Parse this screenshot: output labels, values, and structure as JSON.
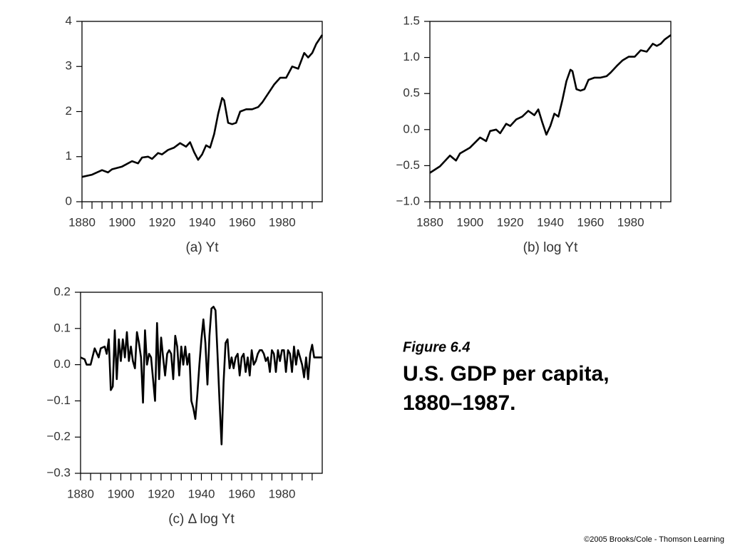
{
  "chart_data": [
    {
      "type": "line",
      "xlabel": "(a) Yt",
      "color": "#000000",
      "x": [
        1880,
        1885,
        1890,
        1893,
        1895,
        1900,
        1905,
        1908,
        1910,
        1913,
        1915,
        1918,
        1920,
        1923,
        1926,
        1929,
        1932,
        1934,
        1936,
        1938,
        1940,
        1942,
        1944,
        1946,
        1948,
        1950,
        1951,
        1953,
        1955,
        1957,
        1959,
        1962,
        1965,
        1968,
        1970,
        1973,
        1976,
        1979,
        1982,
        1985,
        1988,
        1991,
        1993,
        1995,
        1997,
        2000
      ],
      "values": [
        0.55,
        0.6,
        0.7,
        0.65,
        0.72,
        0.78,
        0.9,
        0.85,
        0.98,
        1.0,
        0.95,
        1.08,
        1.05,
        1.15,
        1.2,
        1.3,
        1.22,
        1.32,
        1.1,
        0.93,
        1.05,
        1.25,
        1.2,
        1.5,
        1.95,
        2.3,
        2.25,
        1.75,
        1.72,
        1.75,
        2.0,
        2.05,
        2.05,
        2.1,
        2.2,
        2.4,
        2.6,
        2.75,
        2.75,
        3.0,
        2.95,
        3.3,
        3.2,
        3.3,
        3.5,
        3.7
      ],
      "xlim": [
        1880,
        2000
      ],
      "xticks": [
        1880,
        1900,
        1920,
        1940,
        1960,
        1980
      ],
      "xminorticks": [
        1885,
        1890,
        1895,
        1905,
        1910,
        1915,
        1925,
        1930,
        1935,
        1945,
        1950,
        1955,
        1965,
        1970,
        1975,
        1985,
        1990,
        1995
      ],
      "ylim": [
        0,
        4
      ],
      "yticks": [
        0,
        1,
        2,
        3,
        4
      ]
    },
    {
      "type": "line",
      "xlabel": "(b) log Yt",
      "color": "#000000",
      "x": [
        1880,
        1885,
        1890,
        1893,
        1895,
        1900,
        1905,
        1908,
        1910,
        1913,
        1915,
        1918,
        1920,
        1923,
        1926,
        1929,
        1932,
        1934,
        1936,
        1938,
        1940,
        1942,
        1944,
        1946,
        1948,
        1950,
        1951,
        1953,
        1955,
        1957,
        1959,
        1962,
        1965,
        1968,
        1970,
        1973,
        1976,
        1979,
        1982,
        1985,
        1988,
        1991,
        1993,
        1995,
        1997,
        2000
      ],
      "values": [
        -0.6,
        -0.51,
        -0.36,
        -0.43,
        -0.33,
        -0.25,
        -0.11,
        -0.16,
        -0.02,
        0.0,
        -0.05,
        0.08,
        0.05,
        0.14,
        0.18,
        0.26,
        0.2,
        0.28,
        0.1,
        -0.07,
        0.05,
        0.22,
        0.18,
        0.41,
        0.67,
        0.83,
        0.81,
        0.56,
        0.54,
        0.56,
        0.69,
        0.72,
        0.72,
        0.74,
        0.79,
        0.88,
        0.96,
        1.01,
        1.01,
        1.1,
        1.08,
        1.19,
        1.16,
        1.19,
        1.25,
        1.31
      ],
      "xlim": [
        1880,
        2000
      ],
      "xticks": [
        1880,
        1900,
        1920,
        1940,
        1960,
        1980
      ],
      "xminorticks": [
        1885,
        1890,
        1895,
        1905,
        1910,
        1915,
        1925,
        1930,
        1935,
        1945,
        1950,
        1955,
        1965,
        1970,
        1975,
        1985,
        1990,
        1995
      ],
      "ylim": [
        -1,
        1.5
      ],
      "yticks": [
        {
          "value": -1,
          "label": "−1.0"
        },
        {
          "value": -0.5,
          "label": "−0.5"
        },
        {
          "value": 0,
          "label": "0.0"
        },
        0.5,
        {
          "value": 1,
          "label": "1.0"
        },
        1.5
      ]
    },
    {
      "type": "line",
      "xlabel": "(c) Δ log Yt",
      "color": "#000000",
      "x": [
        1880,
        1882,
        1883,
        1885,
        1887,
        1889,
        1890,
        1892,
        1893,
        1894,
        1895,
        1896,
        1897,
        1898,
        1899,
        1900,
        1901,
        1902,
        1903,
        1904,
        1905,
        1906,
        1907,
        1908,
        1909,
        1910,
        1911,
        1912,
        1913,
        1914,
        1915,
        1916,
        1917,
        1918,
        1919,
        1920,
        1921,
        1922,
        1923,
        1924,
        1925,
        1926,
        1927,
        1928,
        1929,
        1930,
        1931,
        1932,
        1933,
        1934,
        1935,
        1936,
        1937,
        1938,
        1939,
        1940,
        1941,
        1942,
        1943,
        1944,
        1945,
        1946,
        1947,
        1948,
        1949,
        1950,
        1951,
        1952,
        1953,
        1954,
        1955,
        1956,
        1957,
        1958,
        1959,
        1960,
        1961,
        1962,
        1963,
        1964,
        1965,
        1966,
        1967,
        1968,
        1969,
        1970,
        1971,
        1972,
        1973,
        1974,
        1975,
        1976,
        1977,
        1978,
        1979,
        1980,
        1981,
        1982,
        1983,
        1984,
        1985,
        1986,
        1987,
        1988,
        1989,
        1990,
        1991,
        1992,
        1993,
        1994,
        1995,
        1996,
        1998,
        2000
      ],
      "values": [
        0.02,
        0.015,
        0,
        0,
        0.045,
        0.02,
        0.045,
        0.05,
        0.03,
        0.07,
        -0.07,
        -0.06,
        0.095,
        -0.04,
        0.07,
        0.01,
        0.07,
        0.02,
        0.09,
        0.01,
        0.05,
        0.01,
        -0.01,
        0.09,
        0.06,
        0.02,
        -0.105,
        0.095,
        0,
        0.03,
        0.02,
        -0.04,
        -0.1,
        0.115,
        -0.04,
        0.075,
        0.02,
        -0.03,
        0.03,
        0.04,
        0.03,
        -0.04,
        0.08,
        0.05,
        -0.03,
        0.05,
        0,
        0.05,
        0,
        0.03,
        -0.1,
        -0.12,
        -0.15,
        -0.08,
        0,
        0.07,
        0.125,
        0.06,
        -0.055,
        0.08,
        0.155,
        0.16,
        0.15,
        0.03,
        -0.1,
        -0.22,
        -0.05,
        0.06,
        0.07,
        -0.01,
        0.02,
        -0.01,
        0.02,
        0.03,
        -0.03,
        0.02,
        0.03,
        -0.02,
        0.02,
        -0.03,
        0.04,
        0,
        0.01,
        0.03,
        0.04,
        0.04,
        0.03,
        0.01,
        0.02,
        -0.02,
        0.04,
        0.03,
        -0.02,
        0.04,
        0.01,
        0.04,
        0.04,
        -0.02,
        0.04,
        0.03,
        -0.02,
        0.05,
        0,
        0.04,
        0.02,
        0,
        -0.035,
        0.02,
        -0.04,
        0.03,
        0.055,
        0.02,
        0.02,
        0.02
      ],
      "xlim": [
        1880,
        2000
      ],
      "xticks": [
        1880,
        1900,
        1920,
        1940,
        1960,
        1980
      ],
      "xminorticks": [
        1885,
        1890,
        1895,
        1905,
        1910,
        1915,
        1925,
        1930,
        1935,
        1945,
        1950,
        1955,
        1965,
        1970,
        1975,
        1985,
        1990,
        1995
      ],
      "ylim": [
        -0.3,
        0.2
      ],
      "yticks": [
        {
          "value": -0.3,
          "label": "−0.3"
        },
        {
          "value": -0.2,
          "label": "−0.2"
        },
        {
          "value": -0.1,
          "label": "−0.1"
        },
        {
          "value": 0,
          "label": "0.0"
        },
        0.1,
        0.2
      ]
    }
  ],
  "figure_label": "Figure 6.4",
  "caption": [
    "U.S. GDP per capita,",
    "1880–1987."
  ],
  "copyright": "©2005 Brooks/Cole - Thomson Learning"
}
